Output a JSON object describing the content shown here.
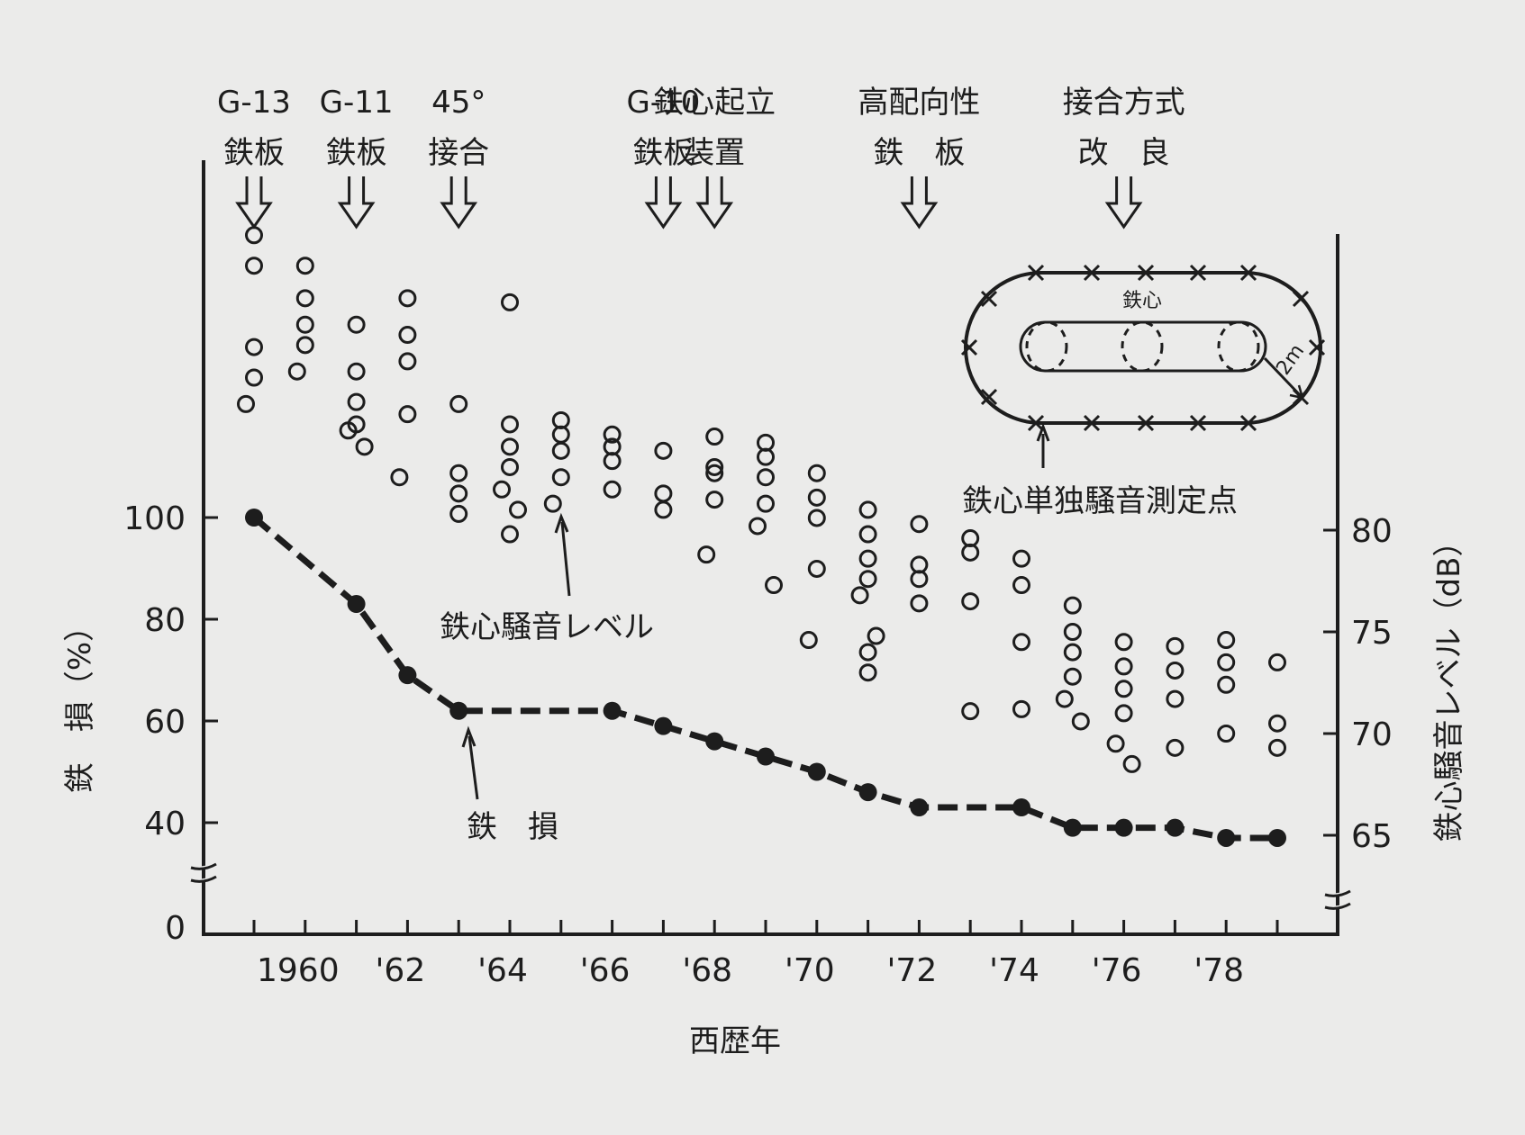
{
  "chart_data": {
    "type": "scatter",
    "xlabel": "西歴年",
    "ylabel_left": "鉄　損（%）",
    "ylabel_right": "鉄心騒音レベル（dB）",
    "x_tick_labels": [
      "1960",
      "'62",
      "'64",
      "'66",
      "'68",
      "'70",
      "'72",
      "'74",
      "'76",
      "'78"
    ],
    "x_tick_years": [
      1960,
      1962,
      1964,
      1966,
      1968,
      1970,
      1972,
      1974,
      1976,
      1978
    ],
    "xlim": [
      1958,
      1980
    ],
    "left_ticks": [
      "0",
      "40",
      "60",
      "80",
      "100"
    ],
    "right_ticks": [
      "65",
      "70",
      "75",
      "80"
    ],
    "annotations": [
      {
        "year": 1959,
        "lines": [
          "G-13",
          "鉄板"
        ]
      },
      {
        "year": 1961,
        "lines": [
          "G-11",
          "鉄板"
        ]
      },
      {
        "year": 1963,
        "lines": [
          "45°",
          "接合"
        ]
      },
      {
        "year": 1967,
        "lines": [
          "G-10",
          "鉄板"
        ]
      },
      {
        "year": 1968,
        "lines": [
          "鉄心起立",
          "装置"
        ]
      },
      {
        "year": 1972,
        "lines": [
          "高配向性",
          "鉄　板"
        ]
      },
      {
        "year": 1976,
        "lines": [
          "接合方式",
          "改　良"
        ]
      }
    ],
    "inset": {
      "core_label": "鉄心",
      "distance_label": "2m",
      "caption": "鉄心単独騒音測定点"
    },
    "callouts": {
      "noise": "鉄心騒音レベル",
      "loss": "鉄　損"
    },
    "series": [
      {
        "name": "鉄損",
        "axis": "left",
        "style": "dashed-line-filled-markers",
        "x": [
          1959,
          1961,
          1962,
          1963,
          1966,
          1967,
          1968,
          1969,
          1970,
          1971,
          1972,
          1974,
          1975,
          1976,
          1977,
          1978,
          1979
        ],
        "y": [
          100,
          83,
          69,
          62,
          62,
          59,
          56,
          53,
          50,
          46,
          43,
          43,
          39,
          39,
          39,
          37,
          37
        ]
      },
      {
        "name": "鉄心騒音レベル",
        "axis": "right",
        "style": "open-circles",
        "points": [
          [
            1959,
            94.5
          ],
          [
            1959,
            93
          ],
          [
            1959,
            89
          ],
          [
            1959,
            87.5
          ],
          [
            1959,
            86.2
          ],
          [
            1960,
            93
          ],
          [
            1960,
            91.4
          ],
          [
            1960,
            90.1
          ],
          [
            1960,
            89.1
          ],
          [
            1960,
            87.8
          ],
          [
            1961,
            90.1
          ],
          [
            1961,
            87.8
          ],
          [
            1961,
            86.3
          ],
          [
            1961,
            85.2
          ],
          [
            1961,
            84.9
          ],
          [
            1961,
            84.1
          ],
          [
            1962,
            91.4
          ],
          [
            1962,
            89.6
          ],
          [
            1962,
            88.3
          ],
          [
            1962,
            85.7
          ],
          [
            1962,
            82.6
          ],
          [
            1963,
            86.2
          ],
          [
            1963,
            82.8
          ],
          [
            1963,
            81.8
          ],
          [
            1963,
            80.8
          ],
          [
            1964,
            91.2
          ],
          [
            1964,
            85.2
          ],
          [
            1964,
            84.1
          ],
          [
            1964,
            83.1
          ],
          [
            1964,
            82
          ],
          [
            1964,
            81
          ],
          [
            1964,
            79.8
          ],
          [
            1965,
            85.4
          ],
          [
            1965,
            84.7
          ],
          [
            1965,
            83.9
          ],
          [
            1965,
            82.6
          ],
          [
            1965,
            81.3
          ],
          [
            1966,
            84.7
          ],
          [
            1966,
            84.1
          ],
          [
            1966,
            83.4
          ],
          [
            1966,
            82
          ],
          [
            1967,
            83.9
          ],
          [
            1967,
            81.8
          ],
          [
            1967,
            81
          ],
          [
            1968,
            84.6
          ],
          [
            1968,
            83.1
          ],
          [
            1968,
            82.8
          ],
          [
            1968,
            81.5
          ],
          [
            1968,
            78.8
          ],
          [
            1969,
            84.3
          ],
          [
            1969,
            83.6
          ],
          [
            1969,
            82.6
          ],
          [
            1969,
            81.3
          ],
          [
            1969,
            80.2
          ],
          [
            1969,
            77.3
          ],
          [
            1970,
            82.8
          ],
          [
            1970,
            81.6
          ],
          [
            1970,
            80.6
          ],
          [
            1970,
            78.1
          ],
          [
            1970,
            74.6
          ],
          [
            1971,
            81
          ],
          [
            1971,
            79.8
          ],
          [
            1971,
            78.6
          ],
          [
            1971,
            77.6
          ],
          [
            1971,
            76.8
          ],
          [
            1971,
            74.8
          ],
          [
            1971,
            74
          ],
          [
            1971,
            73
          ],
          [
            1972,
            80.3
          ],
          [
            1972,
            78.3
          ],
          [
            1972,
            77.6
          ],
          [
            1972,
            76.4
          ],
          [
            1973,
            79.6
          ],
          [
            1973,
            78.9
          ],
          [
            1973,
            76.5
          ],
          [
            1973,
            71.1
          ],
          [
            1974,
            78.6
          ],
          [
            1974,
            77.3
          ],
          [
            1974,
            74.5
          ],
          [
            1974,
            71.2
          ],
          [
            1975,
            76.3
          ],
          [
            1975,
            75.0
          ],
          [
            1975,
            74.0
          ],
          [
            1975,
            72.8
          ],
          [
            1975,
            71.7
          ],
          [
            1975,
            70.6
          ],
          [
            1976,
            74.5
          ],
          [
            1976,
            73.3
          ],
          [
            1976,
            72.2
          ],
          [
            1976,
            71.0
          ],
          [
            1976,
            69.5
          ],
          [
            1976,
            68.5
          ],
          [
            1977,
            74.3
          ],
          [
            1977,
            73.1
          ],
          [
            1977,
            71.7
          ],
          [
            1977,
            69.3
          ],
          [
            1978,
            74.6
          ],
          [
            1978,
            73.5
          ],
          [
            1978,
            72.4
          ],
          [
            1978,
            70.0
          ],
          [
            1979,
            73.5
          ],
          [
            1979,
            70.5
          ],
          [
            1979,
            69.3
          ]
        ]
      }
    ]
  }
}
